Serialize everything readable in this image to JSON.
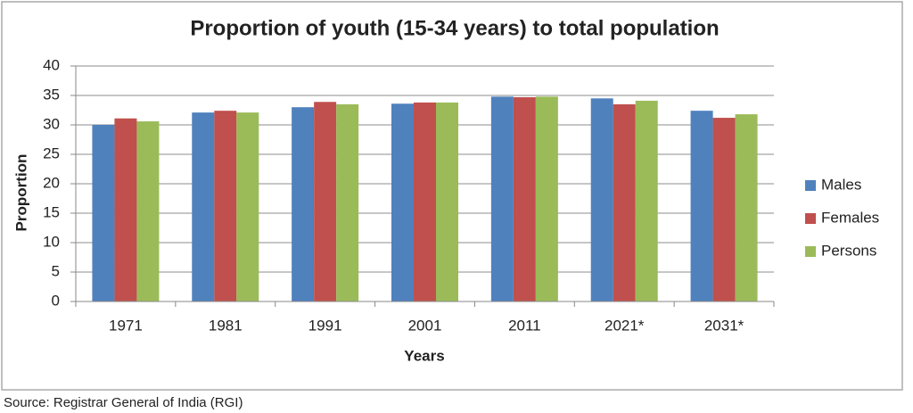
{
  "chart_data": {
    "type": "bar",
    "title": "Proportion of youth (15-34 years) to total population",
    "x_label": "Years",
    "y_label": "Proportion",
    "categories": [
      "1971",
      "1981",
      "1991",
      "2001",
      "2011",
      "2021*",
      "2031*"
    ],
    "series": [
      {
        "name": "Males",
        "color": "#4f81bd",
        "values": [
          30.0,
          32.1,
          33.0,
          33.6,
          34.8,
          34.5,
          32.4
        ]
      },
      {
        "name": "Females",
        "color": "#c0504d",
        "values": [
          31.1,
          32.4,
          33.9,
          33.8,
          34.7,
          33.5,
          31.2
        ]
      },
      {
        "name": "Persons",
        "color": "#9bbb59",
        "values": [
          30.6,
          32.1,
          33.5,
          33.8,
          34.8,
          34.1,
          31.8
        ]
      }
    ],
    "ylim": [
      0,
      40
    ],
    "yticks": [
      0,
      5,
      10,
      15,
      20,
      25,
      30,
      35,
      40
    ],
    "grid": true,
    "legend": "right",
    "source": "Source: Registrar General of India (RGI)"
  }
}
